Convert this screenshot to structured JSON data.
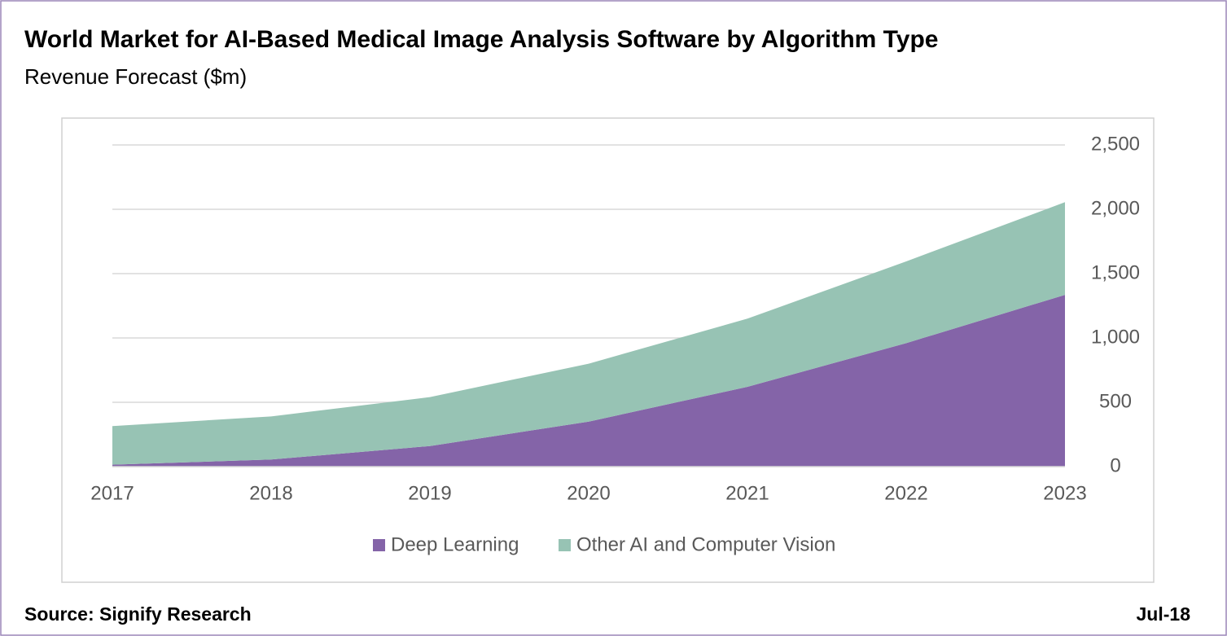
{
  "chart_data": {
    "type": "stacked-area",
    "title": "World Market for AI-Based Medical Image Analysis Software by Algorithm Type",
    "subtitle": "Revenue Forecast ($m)",
    "categories": [
      "2017",
      "2018",
      "2019",
      "2020",
      "2021",
      "2022",
      "2023"
    ],
    "series": [
      {
        "name": "Deep Learning",
        "color": "#8464a8",
        "values": [
          15,
          55,
          160,
          350,
          620,
          960,
          1335
        ]
      },
      {
        "name": "Other AI and Computer Vision",
        "color": "#97c3b4",
        "values": [
          300,
          335,
          380,
          450,
          530,
          635,
          720
        ]
      }
    ],
    "ylim": [
      0,
      2500
    ],
    "yticks": [
      0,
      500,
      {
        "value": 1000,
        "label": "1,000"
      },
      {
        "value": 1500,
        "label": "1,500"
      },
      {
        "value": 2000,
        "label": "2,000"
      },
      {
        "value": 2500,
        "label": "2,500"
      }
    ],
    "grid": true,
    "legend": "bottom",
    "source": "Source: Signify Research",
    "date": "Jul-18"
  }
}
